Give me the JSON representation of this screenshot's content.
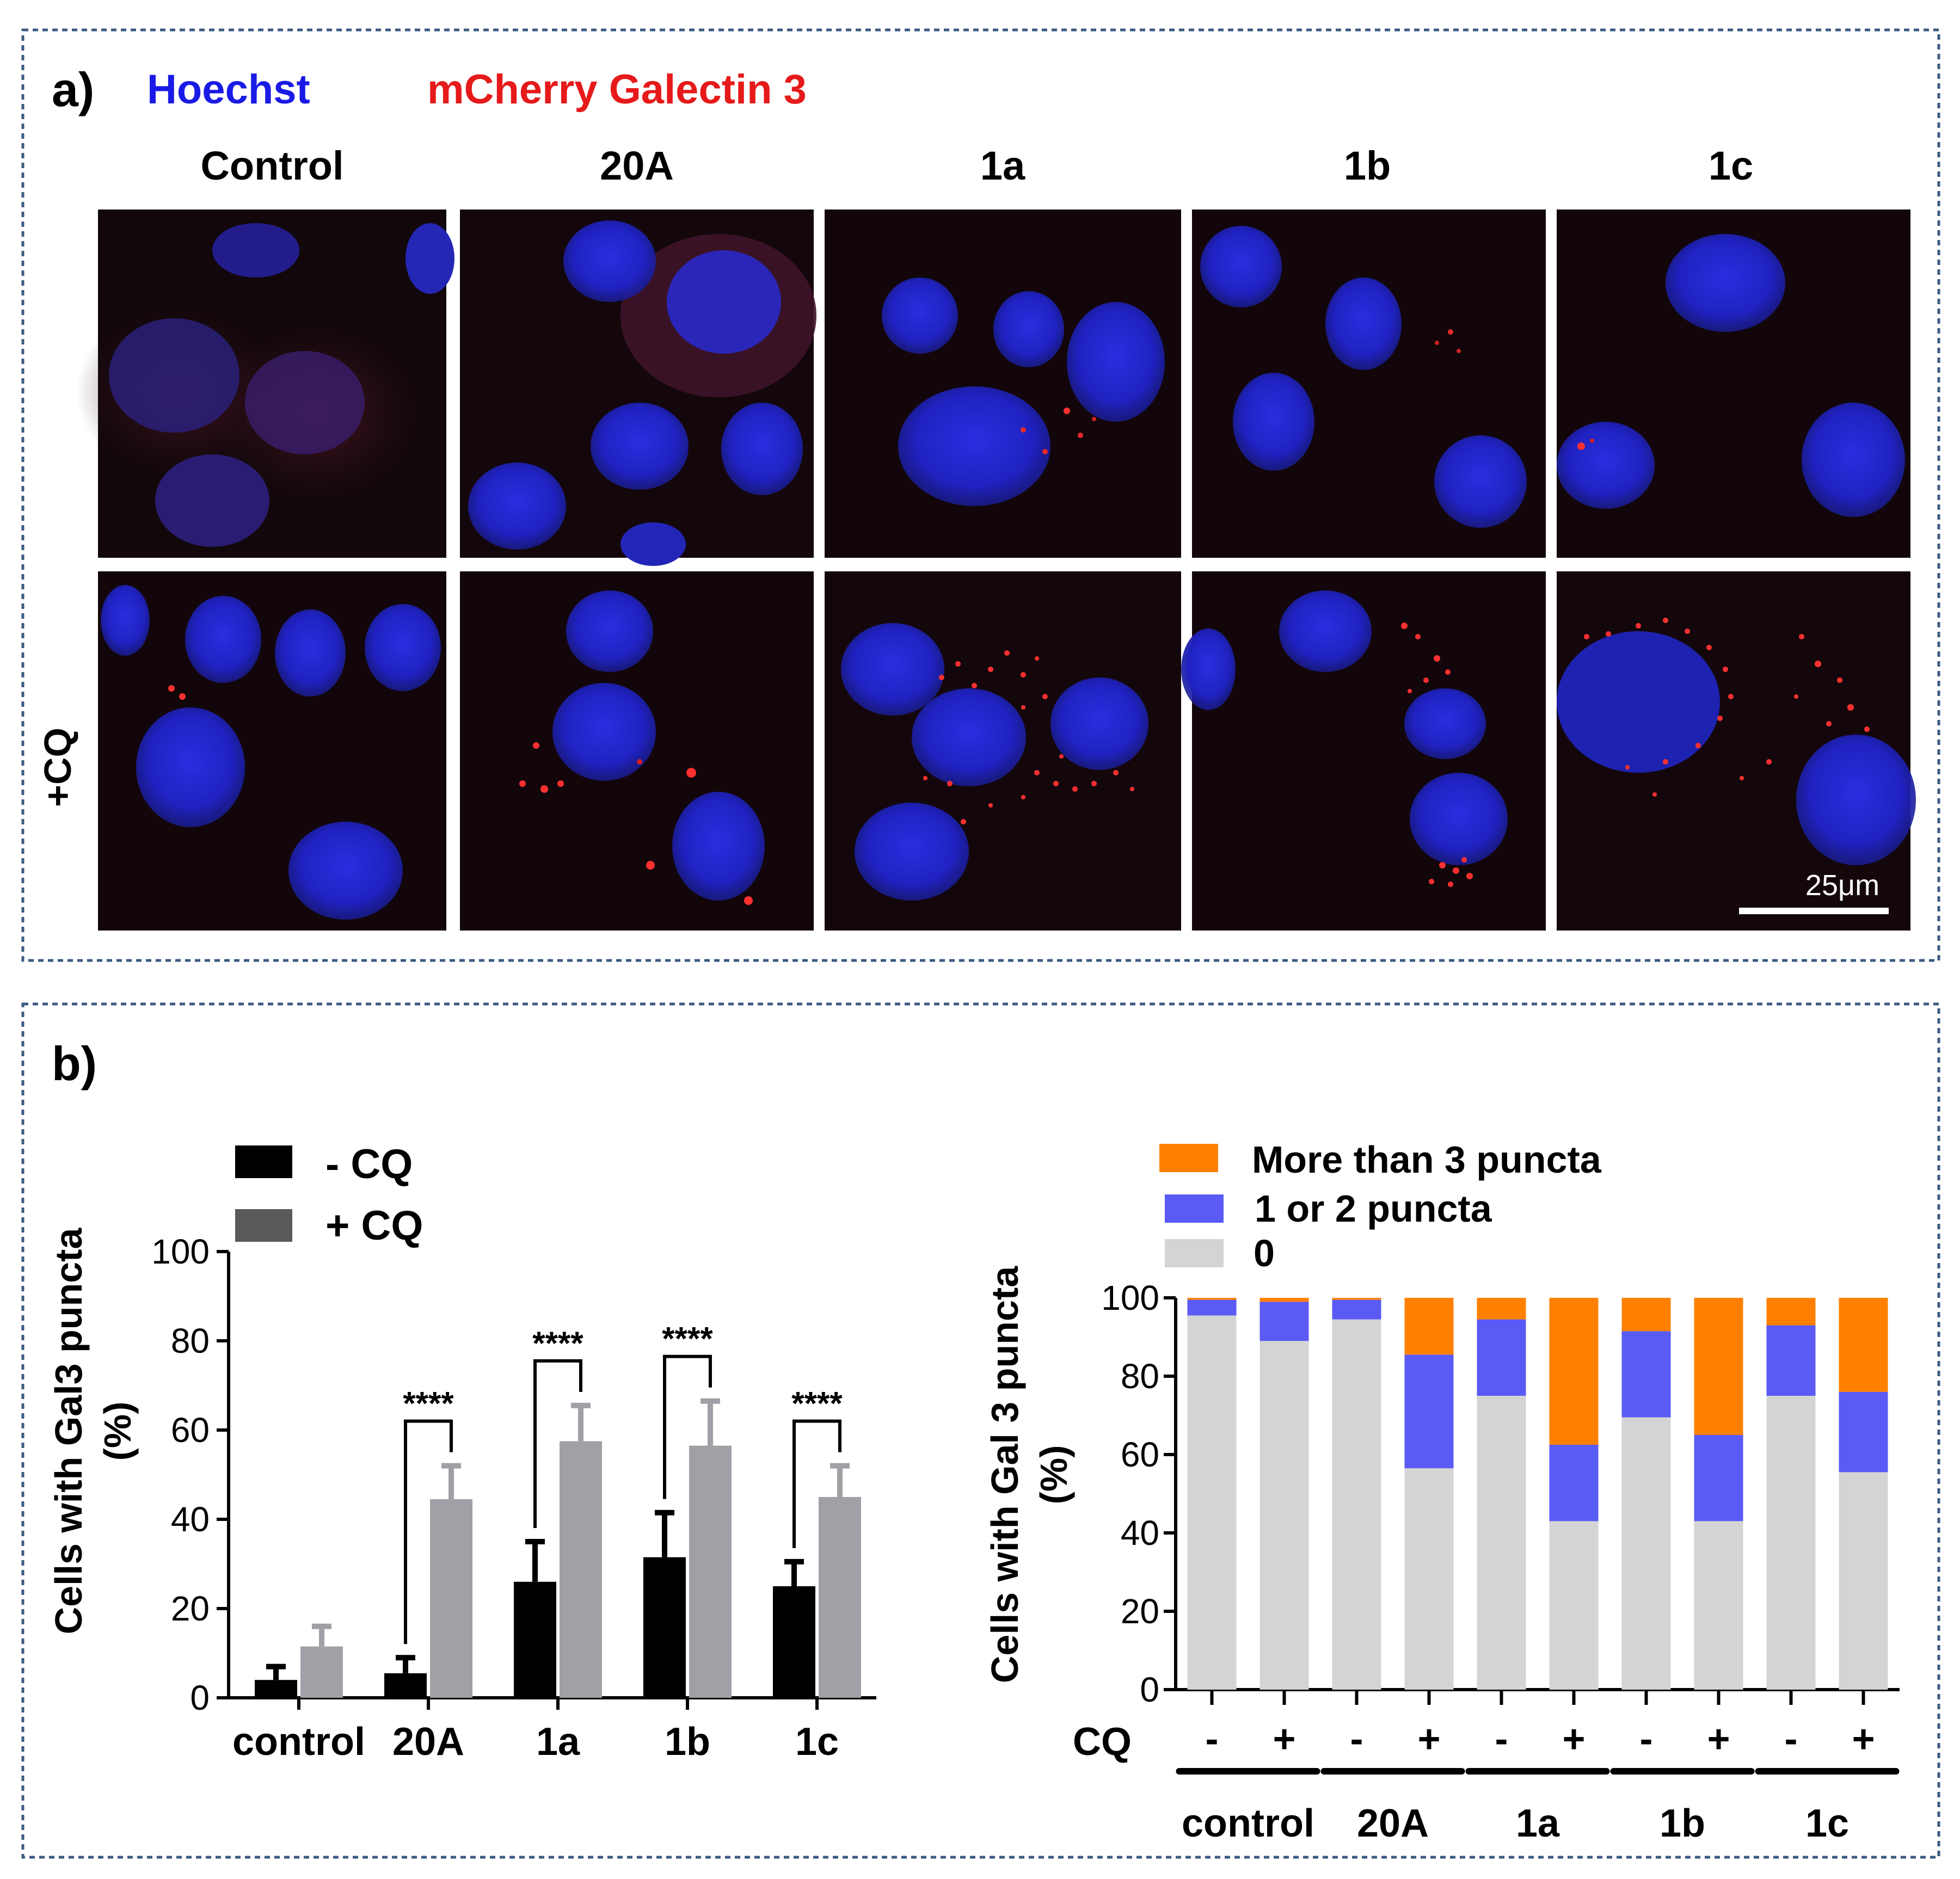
{
  "panel_a": {
    "label": "a)",
    "stains": {
      "hoechst": "Hoechst",
      "mcherry": "mCherry Galectin 3"
    },
    "columns": [
      "Control",
      "20A",
      "1a",
      "1b",
      "1c"
    ],
    "row_label": "+CQ",
    "scale_bar": "25μm",
    "colors": {
      "hoechst": "#1a1ae6",
      "mcherry": "#e61a1a",
      "nucleus": "#1f22c8",
      "background": "#12080c",
      "puncta": "#ff2a2a"
    }
  },
  "panel_b": {
    "label": "b)"
  },
  "chart_data": [
    {
      "type": "bar",
      "title": "",
      "xlabel": "",
      "ylabel": "Cells with Gal3 puncta (%)",
      "ylabel_lines": [
        "Cells with Gal3 puncta",
        "(%)"
      ],
      "ylim": [
        0,
        100
      ],
      "yticks": [
        "0",
        "20",
        "40",
        "60",
        "80",
        "100"
      ],
      "categories": [
        "control",
        "20A",
        "1a",
        "1b",
        "1c"
      ],
      "series": [
        {
          "name": "- CQ",
          "color": "#000000",
          "values": [
            4,
            5.5,
            26,
            31.5,
            25
          ],
          "errors": [
            3,
            3.5,
            9,
            10,
            5.5
          ]
        },
        {
          "name": "+ CQ",
          "color": "#a0a0a6",
          "values": [
            11.5,
            44.5,
            57.5,
            56.5,
            45
          ],
          "errors": [
            4.5,
            7.5,
            8,
            10,
            7
          ]
        }
      ],
      "legend": [
        "- CQ",
        "+ CQ"
      ],
      "legend_position": "top-left",
      "significance": {
        "label": "****",
        "categories": [
          "20A",
          "1a",
          "1b",
          "1c"
        ]
      }
    },
    {
      "type": "bar",
      "stacked": true,
      "title": "",
      "ylabel": "Cells with Gal 3 puncta (%)",
      "ylabel_lines": [
        "Cells with Gal 3 puncta",
        "(%)"
      ],
      "ylim": [
        0,
        100
      ],
      "yticks": [
        "0",
        "20",
        "40",
        "60",
        "80",
        "100"
      ],
      "cq_label": "CQ",
      "cq_states": [
        "-",
        "+",
        "-",
        "+",
        "-",
        "+",
        "-",
        "+",
        "-",
        "+"
      ],
      "groups": [
        "control",
        "20A",
        "1a",
        "1b",
        "1c"
      ],
      "series": [
        {
          "name": "0",
          "color": "#d4d4d4",
          "values": [
            95.5,
            89,
            94.5,
            56.5,
            75,
            43,
            69.5,
            43,
            75,
            55.5
          ]
        },
        {
          "name": "1 or 2 puncta",
          "color": "#5a5af5",
          "values": [
            4,
            10,
            5,
            29,
            19.5,
            19.5,
            22,
            22,
            18,
            20.5
          ]
        },
        {
          "name": "More than 3 puncta",
          "color": "#ff8000",
          "values": [
            0.5,
            1,
            0.5,
            14.5,
            5.5,
            37.5,
            8.5,
            35,
            7,
            24
          ]
        }
      ],
      "legend": [
        "More than 3 puncta",
        "1 or 2 puncta",
        "0"
      ],
      "legend_position": "top"
    }
  ]
}
